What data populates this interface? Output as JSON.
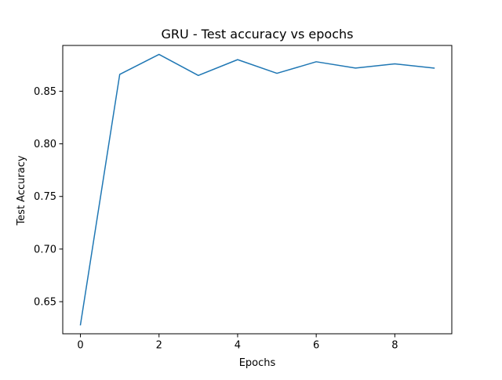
{
  "chart_data": {
    "type": "line",
    "title": "GRU - Test accuracy vs epochs",
    "xlabel": "Epochs",
    "ylabel": "Test Accuracy",
    "x": [
      0,
      1,
      2,
      3,
      4,
      5,
      6,
      7,
      8,
      9
    ],
    "series": [
      {
        "values": [
          0.628,
          0.866,
          0.885,
          0.865,
          0.88,
          0.867,
          0.878,
          0.872,
          0.876,
          0.872
        ],
        "color": "#1f77b4"
      }
    ],
    "xlim": [
      -0.45,
      9.45
    ],
    "ylim": [
      0.6195,
      0.8935
    ],
    "xticks": [
      0,
      2,
      4,
      6,
      8
    ],
    "yticks": [
      0.65,
      0.7,
      0.75,
      0.8,
      0.85
    ],
    "ytick_labels": [
      "0.65",
      "0.70",
      "0.75",
      "0.80",
      "0.85"
    ],
    "grid": false,
    "legend": "none"
  }
}
